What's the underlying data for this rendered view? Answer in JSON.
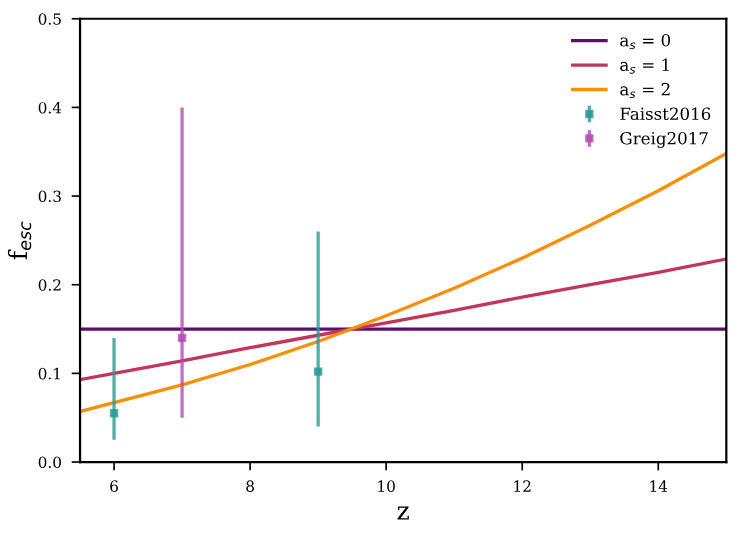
{
  "chart_data": {
    "type": "line",
    "xlabel": "z",
    "ylabel": "f$_{esc}$",
    "xlim": [
      5.5,
      15
    ],
    "ylim": [
      0,
      0.5
    ],
    "xticks": [
      6,
      8,
      10,
      12,
      14
    ],
    "yticks": [
      {
        "value": 0,
        "label": "0.0"
      },
      0.1,
      0.2,
      0.3,
      0.4,
      0.5
    ],
    "grid": false,
    "legend": "top right",
    "series": [
      {
        "name": "a$_{s}$ = 0",
        "color": "#57106e",
        "x": [
          5.5,
          15
        ],
        "values": [
          0.15,
          0.15
        ]
      },
      {
        "name": "a$_{s}$ = 1",
        "color": "#c1365a",
        "x": [
          5.5,
          6,
          7,
          8,
          9,
          10,
          11,
          12,
          13,
          14,
          15
        ],
        "values": [
          0.093,
          0.1,
          0.114,
          0.129,
          0.143,
          0.157,
          0.171,
          0.186,
          0.2,
          0.214,
          0.229
        ]
      },
      {
        "name": "a$_{s}$ = 2",
        "color": "#f98e09",
        "x": [
          5.5,
          6,
          7,
          8,
          9,
          10,
          11,
          12,
          13,
          14,
          15
        ],
        "values": [
          0.057,
          0.067,
          0.087,
          0.11,
          0.136,
          0.165,
          0.196,
          0.23,
          0.267,
          0.306,
          0.348
        ]
      },
      {
        "name": "Faisst2016",
        "type": "scatter",
        "marker": "square",
        "color": "#2a9a94",
        "x": [
          6,
          9
        ],
        "values": [
          0.055,
          0.102
        ],
        "errors": [
          [
            0.025,
            0.14
          ],
          [
            0.04,
            0.26
          ]
        ]
      },
      {
        "name": "Greig2017",
        "type": "scatter",
        "marker": "square",
        "color": "#b44bb4",
        "x": [
          7
        ],
        "values": [
          0.14
        ],
        "errors": [
          [
            0.05,
            0.4
          ]
        ]
      }
    ]
  }
}
